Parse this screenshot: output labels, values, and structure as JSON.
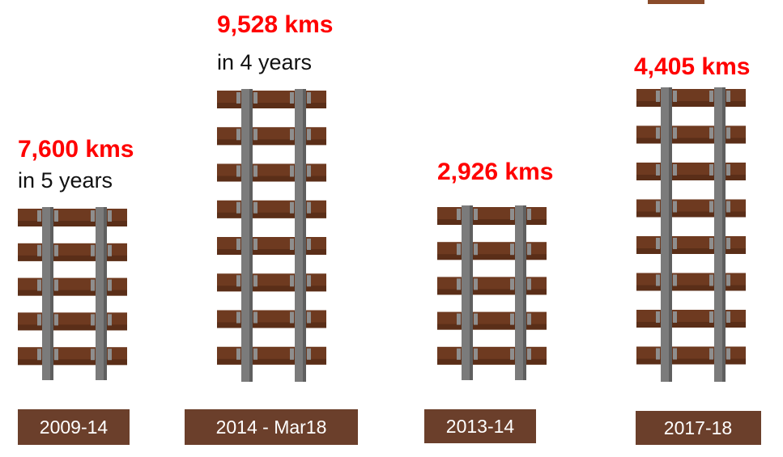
{
  "items": [
    {
      "headline": "7,600 kms",
      "note": "in 5 years",
      "period": "2009-14"
    },
    {
      "headline": "9,528 kms",
      "note": "in 4 years",
      "period": "2014 - Mar18"
    },
    {
      "headline": "2,926 kms",
      "period": "2013-14"
    },
    {
      "headline": "4,405 kms",
      "period": "2017-18"
    }
  ]
}
